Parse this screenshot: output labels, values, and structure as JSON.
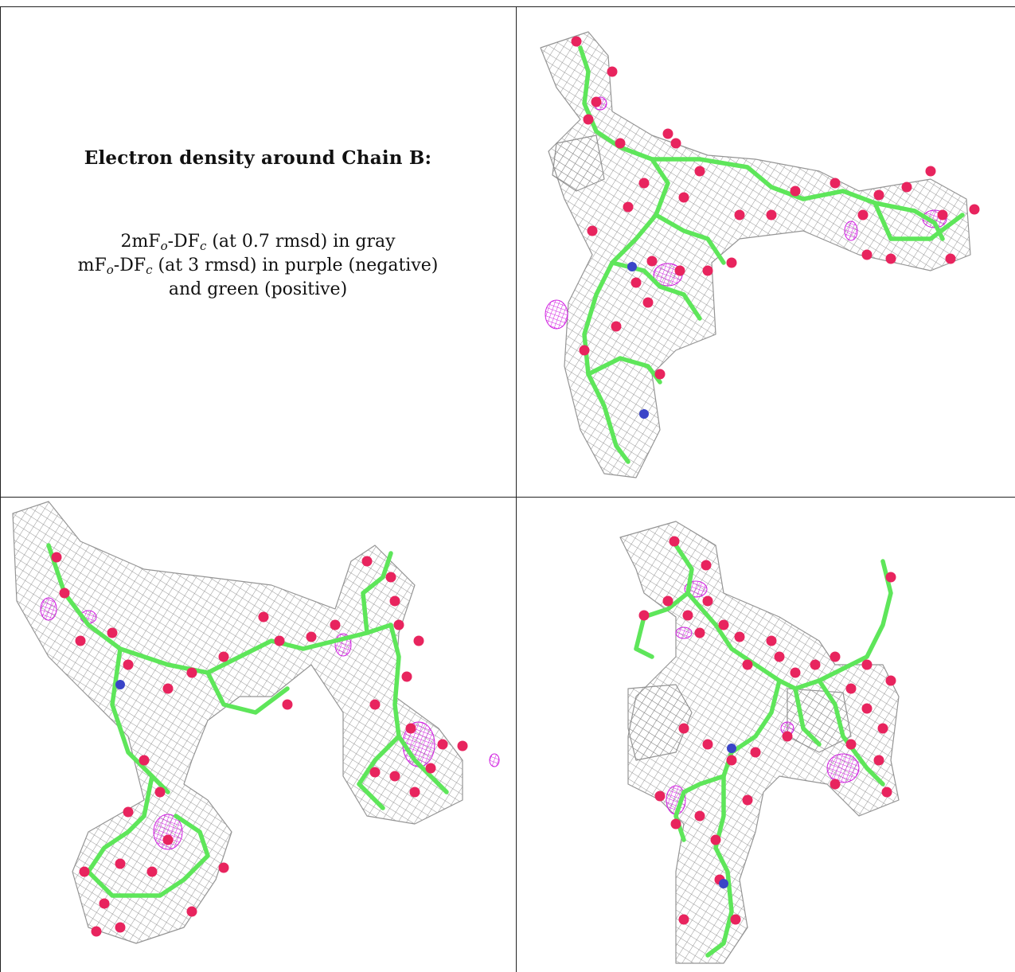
{
  "caption": {
    "title": "Electron density around Chain B:",
    "line1": {
      "prefix": "2mF",
      "sub1": "o",
      "mid": "-DF",
      "sub2": "c",
      "suffix": " (at 0.7 rmsd) in gray"
    },
    "line2": {
      "prefix": "mF",
      "sub1": "o",
      "mid": "-DF",
      "sub2": "c",
      "suffix": " (at 3 rmsd) in purple (negative)"
    },
    "line3": "and green (positive)"
  },
  "colors": {
    "mesh": "#8a8a8a",
    "bond": "#5ee65a",
    "oxygen": "#e8245e",
    "nitrogen": "#3a44c8",
    "negative_density": "#d01ee0",
    "positive_density": "#3ddc3d"
  }
}
